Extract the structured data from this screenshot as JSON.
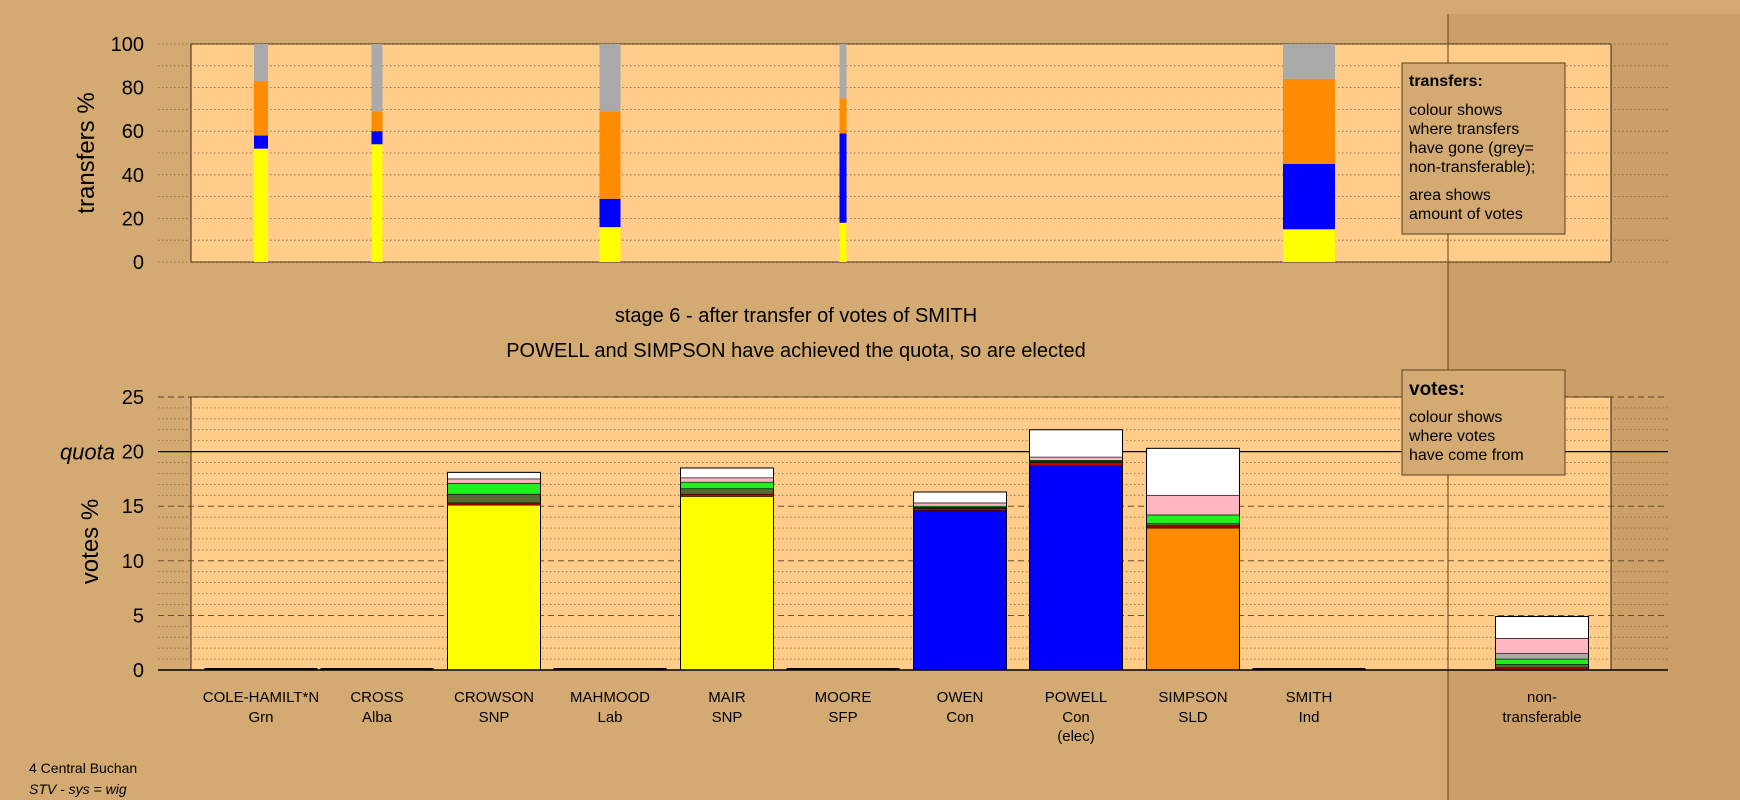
{
  "colors": {
    "background": "#d4aa73",
    "plot_area": "#ffcc8a",
    "SNP": "#ffff00",
    "Con": "#0000ff",
    "SLD": "#ff8c00",
    "non_transferable": "#aaaaaa",
    "Grn": "#22ee22",
    "Lab": "#cc0000",
    "Alba": "#556b2f",
    "SFP": "#ffb6c1",
    "Ind": "#ffffff"
  },
  "chart_data": [
    {
      "type": "bar",
      "stacked": true,
      "ylabel": "transfers %",
      "ylim": [
        0,
        100
      ],
      "yticks": [
        0,
        20,
        40,
        60,
        80,
        100
      ],
      "grid": "dotted horizontal",
      "categories": [
        "COLE-HAMILT*N",
        "CROSS",
        "CROWSON",
        "MAHMOOD",
        "MAIR",
        "MOORE",
        "OWEN",
        "POWELL",
        "SIMPSON",
        "SMITH"
      ],
      "bars": [
        {
          "from": "COLE-HAMILT*N",
          "segments": [
            {
              "to": "SNP",
              "value": 52
            },
            {
              "to": "Con",
              "value": 6
            },
            {
              "to": "SLD",
              "value": 25
            },
            {
              "to": "non_transferable",
              "value": 17
            }
          ]
        },
        {
          "from": "CROSS",
          "segments": [
            {
              "to": "SNP",
              "value": 54
            },
            {
              "to": "Con",
              "value": 6
            },
            {
              "to": "SLD",
              "value": 9
            },
            {
              "to": "non_transferable",
              "value": 31
            }
          ]
        },
        {
          "from": "MAHMOOD",
          "segments": [
            {
              "to": "SNP",
              "value": 16
            },
            {
              "to": "Con",
              "value": 13
            },
            {
              "to": "SLD",
              "value": 40
            },
            {
              "to": "non_transferable",
              "value": 31
            }
          ]
        },
        {
          "from": "MOORE",
          "segments": [
            {
              "to": "SNP",
              "value": 18
            },
            {
              "to": "Con",
              "value": 41
            },
            {
              "to": "SLD",
              "value": 16
            },
            {
              "to": "non_transferable",
              "value": 25
            }
          ]
        },
        {
          "from": "SMITH",
          "segments": [
            {
              "to": "SNP",
              "value": 15
            },
            {
              "to": "Con",
              "value": 30
            },
            {
              "to": "SLD",
              "value": 39
            },
            {
              "to": "non_transferable",
              "value": 16
            }
          ]
        }
      ],
      "legend_box": {
        "title": "transfers:",
        "lines1": [
          "colour shows",
          "where transfers",
          "have gone (grey=",
          "non-transferable);"
        ],
        "lines2": [
          "area shows",
          "amount of votes"
        ]
      }
    },
    {
      "type": "bar",
      "stacked": true,
      "title_line1": "stage 6 - after transfer of votes of SMITH",
      "title_line2": "POWELL and SIMPSON have achieved the quota, so are elected",
      "ylabel": "votes %",
      "ylim": [
        0,
        25
      ],
      "yticks": [
        0,
        5,
        10,
        15,
        20,
        25
      ],
      "quota": 20,
      "quota_label": "quota",
      "categories": [
        {
          "name": "COLE-HAMILT*N",
          "party": "Grn"
        },
        {
          "name": "CROSS",
          "party": "Alba"
        },
        {
          "name": "CROWSON",
          "party": "SNP"
        },
        {
          "name": "MAHMOOD",
          "party": "Lab"
        },
        {
          "name": "MAIR",
          "party": "SNP"
        },
        {
          "name": "MOORE",
          "party": "SFP"
        },
        {
          "name": "OWEN",
          "party": "Con"
        },
        {
          "name": "POWELL",
          "party": "Con",
          "note": "(elec)"
        },
        {
          "name": "SIMPSON",
          "party": "SLD"
        },
        {
          "name": "SMITH",
          "party": "Ind"
        },
        {
          "name": "non-",
          "party": "transferable"
        }
      ],
      "bars": [
        {
          "candidate": "COLE-HAMILT*N",
          "segments": []
        },
        {
          "candidate": "CROSS",
          "segments": []
        },
        {
          "candidate": "CROWSON",
          "segments": [
            {
              "from": "SNP",
              "value": 15.1
            },
            {
              "from": "Lab",
              "value": 0.2
            },
            {
              "from": "Alba",
              "value": 0.8
            },
            {
              "from": "Grn",
              "value": 1.0
            },
            {
              "from": "SFP",
              "value": 0.4
            },
            {
              "from": "Ind",
              "value": 0.6
            }
          ]
        },
        {
          "candidate": "MAHMOOD",
          "segments": []
        },
        {
          "candidate": "MAIR",
          "segments": [
            {
              "from": "SNP",
              "value": 15.9
            },
            {
              "from": "Lab",
              "value": 0.2
            },
            {
              "from": "Alba",
              "value": 0.5
            },
            {
              "from": "Grn",
              "value": 0.6
            },
            {
              "from": "SFP",
              "value": 0.4
            },
            {
              "from": "Ind",
              "value": 0.9
            }
          ]
        },
        {
          "candidate": "MOORE",
          "segments": []
        },
        {
          "candidate": "OWEN",
          "segments": [
            {
              "from": "Con",
              "value": 14.6
            },
            {
              "from": "Lab",
              "value": 0.2
            },
            {
              "from": "Alba",
              "value": 0.1
            },
            {
              "from": "Grn",
              "value": 0.1
            },
            {
              "from": "SFP",
              "value": 0.3
            },
            {
              "from": "Ind",
              "value": 1.0
            }
          ]
        },
        {
          "candidate": "POWELL",
          "segments": [
            {
              "from": "Con",
              "value": 18.7
            },
            {
              "from": "Lab",
              "value": 0.3
            },
            {
              "from": "Alba",
              "value": 0.1
            },
            {
              "from": "Grn",
              "value": 0.1
            },
            {
              "from": "SFP",
              "value": 0.3
            },
            {
              "from": "Ind",
              "value": 2.5
            }
          ]
        },
        {
          "candidate": "SIMPSON",
          "segments": [
            {
              "from": "SLD",
              "value": 13.0
            },
            {
              "from": "Lab",
              "value": 0.2
            },
            {
              "from": "Alba",
              "value": 0.2
            },
            {
              "from": "Grn",
              "value": 0.8
            },
            {
              "from": "SFP",
              "value": 1.8
            },
            {
              "from": "Ind",
              "value": 4.3
            }
          ]
        },
        {
          "candidate": "SMITH",
          "segments": []
        },
        {
          "candidate": "non-transferable",
          "segments": [
            {
              "from": "Lab",
              "value": 0.2
            },
            {
              "from": "Alba",
              "value": 0.3
            },
            {
              "from": "Grn",
              "value": 0.5
            },
            {
              "from": "non_transferable",
              "value": 0.5
            },
            {
              "from": "SFP",
              "value": 1.4
            },
            {
              "from": "Ind",
              "value": 2.0
            }
          ]
        }
      ],
      "legend_box": {
        "title": "votes:",
        "lines": [
          "colour shows",
          "where votes",
          "have come from"
        ]
      }
    }
  ],
  "footer": {
    "line1": "4 Central Buchan",
    "line2": "STV - sys = wig"
  }
}
